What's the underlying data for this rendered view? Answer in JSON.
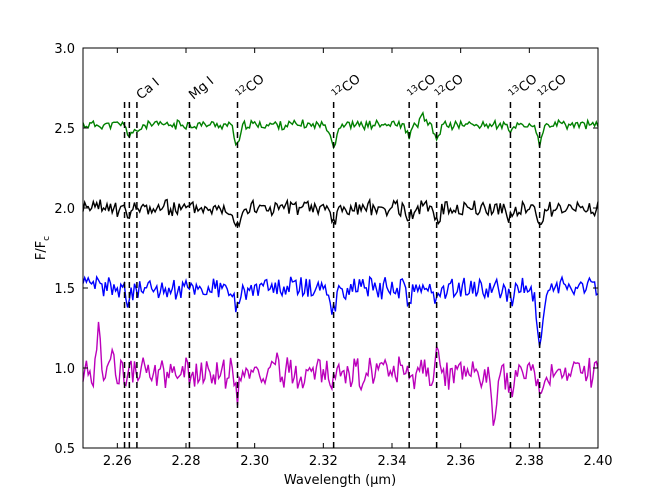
{
  "chart_data": {
    "type": "line",
    "title": "",
    "xlabel": "Wavelength (μm)",
    "ylabel": "F/F",
    "ylabel_sub": "c",
    "xlim": [
      2.25,
      2.4
    ],
    "ylim": [
      0.5,
      3.0
    ],
    "xticks": [
      2.26,
      2.28,
      2.3,
      2.32,
      2.34,
      2.36,
      2.38,
      2.4
    ],
    "xtick_labels": [
      "2.26",
      "2.28",
      "2.30",
      "2.32",
      "2.34",
      "2.36",
      "2.38",
      "2.40"
    ],
    "yticks": [
      0.5,
      1.0,
      1.5,
      2.0,
      2.5,
      3.0
    ],
    "ytick_labels": [
      "0.5",
      "1.0",
      "1.5",
      "2.0",
      "2.5",
      "3.0"
    ],
    "grid": false,
    "line_markers": [
      {
        "x": 2.2621,
        "label": "",
        "iso": ""
      },
      {
        "x": 2.2635,
        "label": "",
        "iso": ""
      },
      {
        "x": 2.2657,
        "label": "Ca I",
        "iso": ""
      },
      {
        "x": 2.281,
        "label": "Mg I",
        "iso": ""
      },
      {
        "x": 2.295,
        "label": "CO",
        "iso": "12"
      },
      {
        "x": 2.323,
        "label": "CO",
        "iso": "12"
      },
      {
        "x": 2.345,
        "label": "CO",
        "iso": "13"
      },
      {
        "x": 2.353,
        "label": "CO",
        "iso": "12"
      },
      {
        "x": 2.3745,
        "label": "CO",
        "iso": "13"
      },
      {
        "x": 2.383,
        "label": "CO",
        "iso": "12"
      }
    ],
    "series": [
      {
        "color": "#008000",
        "base": 2.52,
        "noise": 0.025,
        "seed": 11,
        "dips": [
          [
            2.2635,
            0.06
          ],
          [
            2.2657,
            0.05
          ],
          [
            2.295,
            0.13
          ],
          [
            2.323,
            0.13
          ],
          [
            2.345,
            0.07
          ],
          [
            2.353,
            0.09
          ],
          [
            2.3745,
            0.05
          ],
          [
            2.383,
            0.12
          ]
        ],
        "bumps": [
          [
            2.349,
            0.06
          ]
        ]
      },
      {
        "color": "#000000",
        "base": 2.0,
        "noise": 0.045,
        "seed": 23,
        "dips": [
          [
            2.2635,
            0.06
          ],
          [
            2.295,
            0.1
          ],
          [
            2.323,
            0.09
          ],
          [
            2.345,
            0.06
          ],
          [
            2.353,
            0.07
          ],
          [
            2.3745,
            0.06
          ],
          [
            2.383,
            0.11
          ]
        ],
        "bumps": []
      },
      {
        "color": "#0000ff",
        "base": 1.5,
        "noise": 0.06,
        "seed": 37,
        "dips": [
          [
            2.2635,
            0.09
          ],
          [
            2.295,
            0.15
          ],
          [
            2.323,
            0.12
          ],
          [
            2.345,
            0.08
          ],
          [
            2.353,
            0.08
          ],
          [
            2.3745,
            0.07
          ],
          [
            2.383,
            0.36
          ]
        ],
        "bumps": []
      },
      {
        "color": "#bb00bb",
        "base": 0.97,
        "noise": 0.085,
        "seed": 53,
        "dips": [
          [
            2.295,
            0.12
          ],
          [
            2.323,
            0.08
          ],
          [
            2.345,
            0.08
          ],
          [
            2.353,
            0.08
          ],
          [
            2.37,
            0.3
          ],
          [
            2.3745,
            0.12
          ],
          [
            2.383,
            0.12
          ]
        ],
        "bumps": [
          [
            2.2545,
            0.32
          ],
          [
            2.2585,
            0.12
          ],
          [
            2.306,
            0.1
          ],
          [
            2.353,
            0.18
          ]
        ]
      }
    ]
  }
}
